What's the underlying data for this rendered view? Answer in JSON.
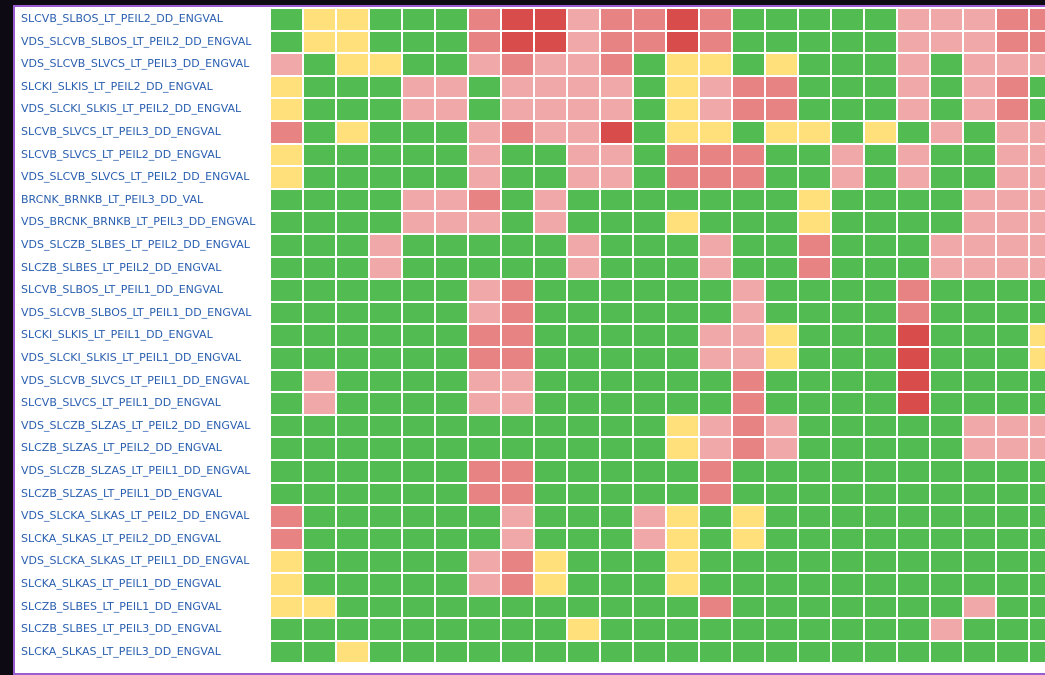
{
  "palette": {
    "G": "#52bb52",
    "Y": "#ffe07a",
    "P": "#f0a8a8",
    "M": "#e88383",
    "R": "#d84c4c"
  },
  "rows": [
    {
      "label": "SLCVB_SLBOS_LT_PEIL2_DD_ENGVAL",
      "cells": "GYYGGGMRRPMMRMGGGGGPPPMM"
    },
    {
      "label": "VDS_SLCVB_SLBOS_LT_PEIL2_DD_ENGVAL",
      "cells": "GYYGGGMRRPMMRMGGGGGPPPMM"
    },
    {
      "label": "VDS_SLCVB_SLVCS_LT_PEIL3_DD_ENGVAL",
      "cells": "PGYYGGPMPPMGYYGYGGGPGPPP"
    },
    {
      "label": "SLCKI_SLKIS_LT_PEIL2_DD_ENGVAL",
      "cells": "YGGGPPGPPPPGYPMMGGGPGPMG"
    },
    {
      "label": "VDS_SLCKI_SLKIS_LT_PEIL2_DD_ENGVAL",
      "cells": "YGGGPPGPPPPGYPMMGGGPGPMG"
    },
    {
      "label": "SLCVB_SLVCS_LT_PEIL3_DD_ENGVAL",
      "cells": "MGYGGGPMPPRGYYGYYGYGPGPP"
    },
    {
      "label": "SLCVB_SLVCS_LT_PEIL2_DD_ENGVAL",
      "cells": "YGGGGGPGGPPGMMMGGPGPGGPP"
    },
    {
      "label": "VDS_SLCVB_SLVCS_LT_PEIL2_DD_ENGVAL",
      "cells": "YGGGGGPGGPPGMMMGGPGPGGPP"
    },
    {
      "label": "BRCNK_BRNKB_LT_PEIL3_DD_VAL",
      "cells": "GGGGPPMGPGGGGGGGYGGGGPPP"
    },
    {
      "label": "VDS_BRCNK_BRNKB_LT_PEIL3_DD_ENGVAL",
      "cells": "GGGGPPPGPGGGYGGGYGGGGPPP"
    },
    {
      "label": "VDS_SLCZB_SLBES_LT_PEIL2_DD_ENGVAL",
      "cells": "GGGPGGGGGPGGGPGGMGGGPPPP"
    },
    {
      "label": "SLCZB_SLBES_LT_PEIL2_DD_ENGVAL",
      "cells": "GGGPGGGGGPGGGPGGMGGGPPPP"
    },
    {
      "label": "SLCVB_SLBOS_LT_PEIL1_DD_ENGVAL",
      "cells": "GGGGGGPMGGGGGGPGGGGMGGGG"
    },
    {
      "label": "VDS_SLCVB_SLBOS_LT_PEIL1_DD_ENGVAL",
      "cells": "GGGGGGPMGGGGGGPGGGGMGGGG"
    },
    {
      "label": "SLCKI_SLKIS_LT_PEIL1_DD_ENGVAL",
      "cells": "GGGGGGMMGGGGGPPYGGGRGGGY"
    },
    {
      "label": "VDS_SLCKI_SLKIS_LT_PEIL1_DD_ENGVAL",
      "cells": "GGGGGGMMGGGGGPPYGGGRGGGY"
    },
    {
      "label": "VDS_SLCVB_SLVCS_LT_PEIL1_DD_ENGVAL",
      "cells": "GPGGGGPPGGGGGGMGGGGRGGGG"
    },
    {
      "label": "SLCVB_SLVCS_LT_PEIL1_DD_ENGVAL",
      "cells": "GPGGGGPPGGGGGGMGGGGRGGGG"
    },
    {
      "label": "VDS_SLCZB_SLZAS_LT_PEIL2_DD_ENGVAL",
      "cells": "GGGGGGGGGGGGYPMPGGGGGPPP"
    },
    {
      "label": "SLCZB_SLZAS_LT_PEIL2_DD_ENGVAL",
      "cells": "GGGGGGGGGGGGYPMPGGGGGPPP"
    },
    {
      "label": "VDS_SLCZB_SLZAS_LT_PEIL1_DD_ENGVAL",
      "cells": "GGGGGGMMGGGGGMGGGGGGGGGG"
    },
    {
      "label": "SLCZB_SLZAS_LT_PEIL1_DD_ENGVAL",
      "cells": "GGGGGGMMGGGGGMGGGGGGGGGG"
    },
    {
      "label": "VDS_SLCKA_SLKAS_LT_PEIL2_DD_ENGVAL",
      "cells": "MGGGGGGPGGGPYGYGGGGGGGGG"
    },
    {
      "label": "SLCKA_SLKAS_LT_PEIL2_DD_ENGVAL",
      "cells": "MGGGGGGPGGGPYGYGGGGGGGGG"
    },
    {
      "label": "VDS_SLCKA_SLKAS_LT_PEIL1_DD_ENGVAL",
      "cells": "YGGGGGPMYGGGYGGGGGGGGGGG"
    },
    {
      "label": "SLCKA_SLKAS_LT_PEIL1_DD_ENGVAL",
      "cells": "YGGGGGPMYGGGYGGGGGGGGGGG"
    },
    {
      "label": "SLCZB_SLBES_LT_PEIL1_DD_ENGVAL",
      "cells": "YYGGGGGGGGGGGMGGGGGGGPGG"
    },
    {
      "label": "SLCZB_SLBES_LT_PEIL3_DD_ENGVAL",
      "cells": "GGGGGGGGGYGGGGGGGGGGPGGG"
    },
    {
      "label": "SLCKA_SLKAS_LT_PEIL3_DD_ENGVAL",
      "cells": "GGYGGGGGGGGGGGGGGGGGGGGG"
    }
  ]
}
